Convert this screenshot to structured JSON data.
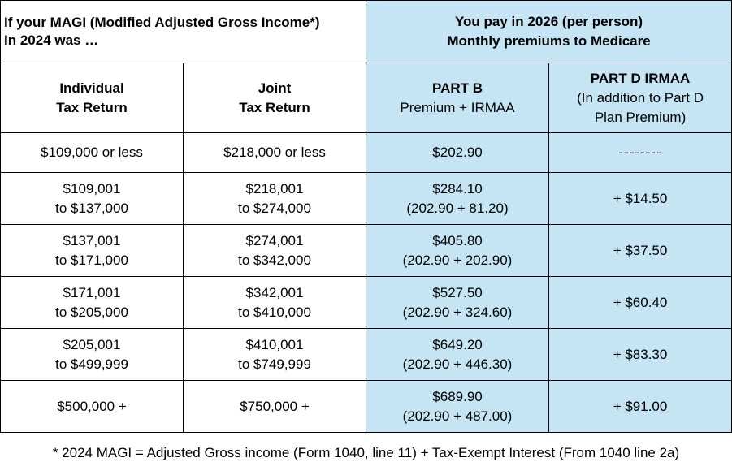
{
  "header": {
    "magi_line1": "If your MAGI (Modified Adjusted Gross Income*)",
    "magi_line2": "In 2024 was …",
    "pay_line1": "You pay in 2026 (per person)",
    "pay_line2": "Monthly premiums to Medicare"
  },
  "columns": {
    "individual_line1": "Individual",
    "individual_line2": "Tax Return",
    "joint_line1": "Joint",
    "joint_line2": "Tax Return",
    "partb_line1": "PART B",
    "partb_line2": "Premium + IRMAA",
    "partd_line1": "PART D IRMAA",
    "partd_line2": "(In addition to Part D",
    "partd_line3": "Plan Premium)"
  },
  "rows": [
    {
      "ind1": "$109,000 or less",
      "ind2": "",
      "joint1": "$218,000 or less",
      "joint2": "",
      "b1": "$202.90",
      "b2": "",
      "d": "--------"
    },
    {
      "ind1": "$109,001",
      "ind2": "to $137,000",
      "joint1": "$218,001",
      "joint2": "to $274,000",
      "b1": "$284.10",
      "b2": "(202.90 + 81.20)",
      "d": "+ $14.50"
    },
    {
      "ind1": "$137,001",
      "ind2": "to $171,000",
      "joint1": "$274,001",
      "joint2": "to $342,000",
      "b1": "$405.80",
      "b2": "(202.90 + 202.90)",
      "d": "+ $37.50"
    },
    {
      "ind1": "$171,001",
      "ind2": "to $205,000",
      "joint1": "$342,001",
      "joint2": "to $410,000",
      "b1": "$527.50",
      "b2": "(202.90 + 324.60)",
      "d": "+ $60.40"
    },
    {
      "ind1": "$205,001",
      "ind2": "to $499,999",
      "joint1": "$410,001",
      "joint2": "to $749,999",
      "b1": "$649.20",
      "b2": "(202.90 + 446.30)",
      "d": "+ $83.30"
    },
    {
      "ind1": "$500,000 +",
      "ind2": "",
      "joint1": "$750,000 +",
      "joint2": "",
      "b1": "$689.90",
      "b2": "(202.90 + 487.00)",
      "d": "+ $91.00"
    }
  ],
  "footnote": "* 2024 MAGI = Adjusted Gross income (Form 1040, line 11) + Tax-Exempt Interest (From 1040 line 2a)",
  "colors": {
    "header_blue": "#c5e5f5",
    "border": "#000000"
  }
}
